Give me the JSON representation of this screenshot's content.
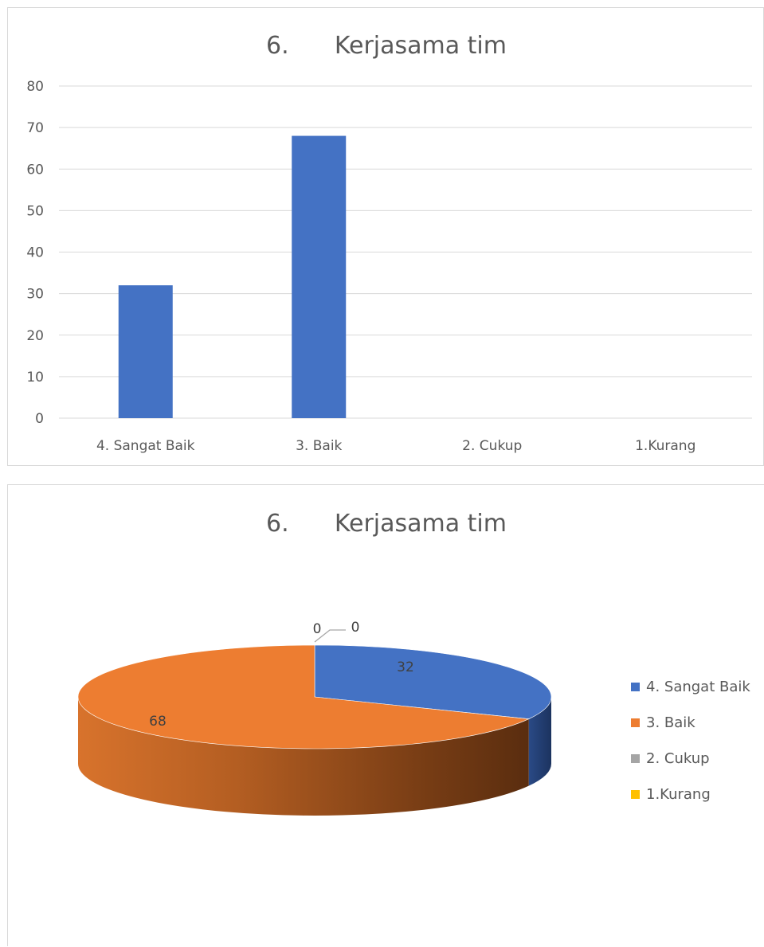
{
  "chart_data": [
    {
      "type": "bar",
      "title": "6.      Kerjasama tim",
      "categories": [
        "4. Sangat Baik",
        "3. Baik",
        "2. Cukup",
        "1.Kurang"
      ],
      "values": [
        32,
        68,
        0,
        0
      ],
      "ylim": [
        0,
        80
      ],
      "yticks": [
        0,
        10,
        20,
        30,
        40,
        50,
        60,
        70,
        80
      ],
      "grid": true,
      "legend": "none",
      "colors": {
        "bar": "#4472C4",
        "grid": "#d9d9d9"
      }
    },
    {
      "type": "pie",
      "title": "6.      Kerjasama tim",
      "categories": [
        "4. Sangat Baik",
        "3. Baik",
        "2. Cukup",
        "1.Kurang"
      ],
      "values": [
        32,
        68,
        0,
        0
      ],
      "data_labels": [
        "32",
        "68",
        "0",
        "0"
      ],
      "legend": "right",
      "style": "3d",
      "colors": [
        "#4472C4",
        "#ED7D31",
        "#A5A5A5",
        "#FFC000"
      ]
    }
  ]
}
